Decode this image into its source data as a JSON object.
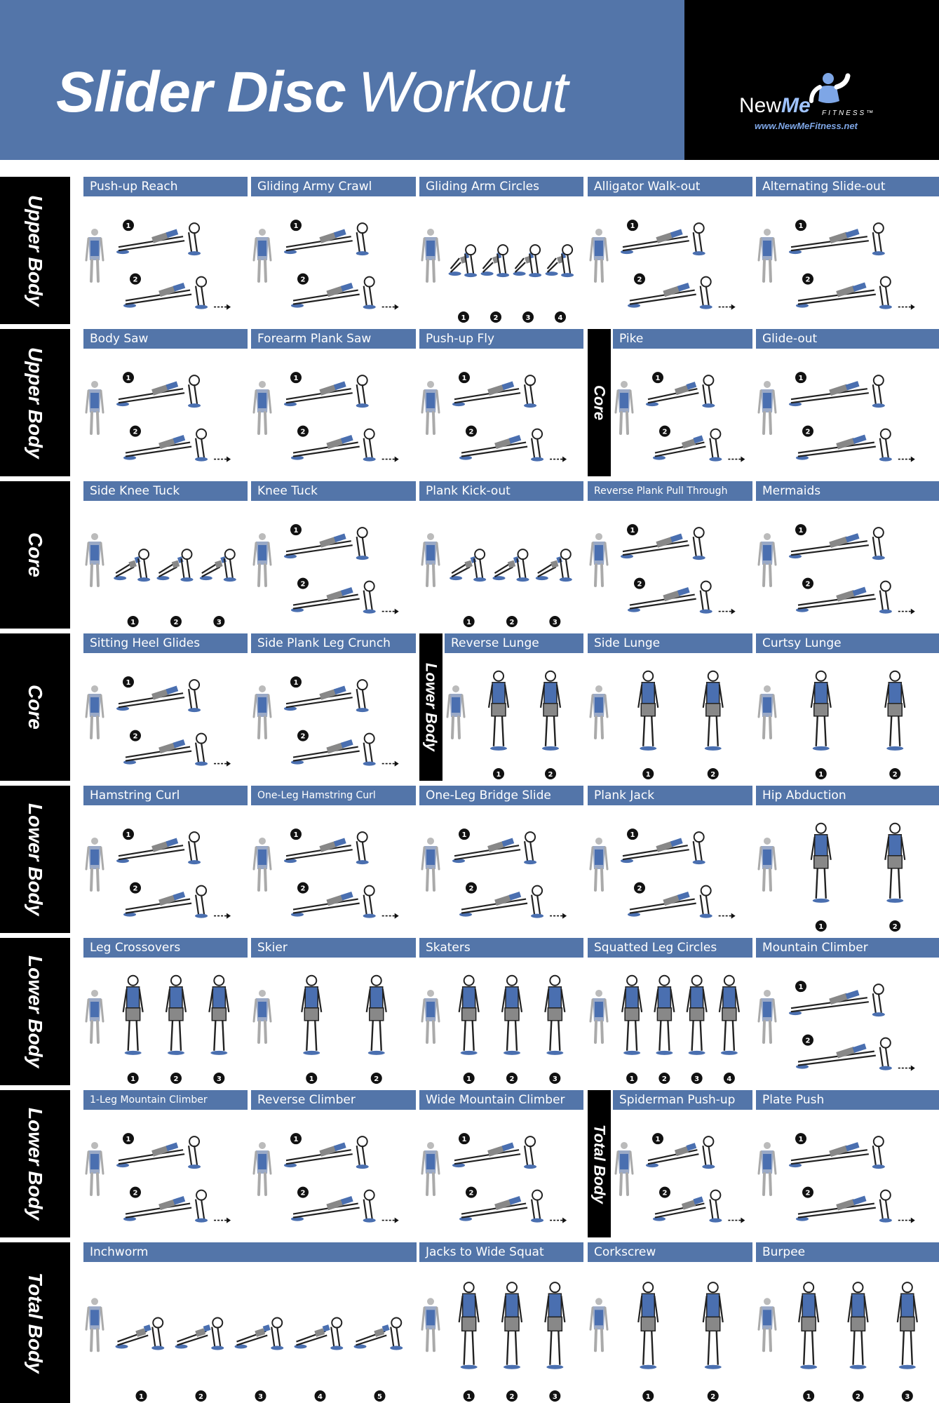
{
  "header": {
    "title_bold": "Slider Disc",
    "title_light": "Workout",
    "brand_new": "New",
    "brand_me": "Me",
    "brand_fitness": "FITNESS™",
    "brand_url": "www.NewMeFitness.net"
  },
  "rows": [
    {
      "label": "Upper Body",
      "cells": [
        {
          "title": "Push-up Reach",
          "steps": [
            "1",
            "2"
          ]
        },
        {
          "title": "Gliding Army Crawl",
          "steps": [
            "1",
            "2"
          ]
        },
        {
          "title": "Gliding Arm Circles",
          "steps": [
            "1",
            "2",
            "3",
            "4"
          ]
        },
        {
          "title": "Alligator Walk-out",
          "steps": [
            "1",
            "2"
          ]
        },
        {
          "title": "Alternating Slide-out",
          "steps": [
            "1",
            "2"
          ]
        }
      ]
    },
    {
      "label": "Upper Body",
      "cells": [
        {
          "title": "Body Saw",
          "steps": [
            "1",
            "2"
          ]
        },
        {
          "title": "Forearm Plank Saw",
          "steps": [
            "1",
            "2"
          ]
        },
        {
          "title": "Push-up Fly",
          "steps": [
            "1",
            "2"
          ]
        },
        {
          "title": "Pike",
          "steps": [
            "1",
            "2"
          ]
        },
        {
          "title": "Glide-out",
          "steps": [
            "1",
            "2"
          ]
        }
      ],
      "inline_label": "Core"
    },
    {
      "label": "Core",
      "cells": [
        {
          "title": "Side Knee Tuck",
          "steps": [
            "1",
            "2",
            "3"
          ]
        },
        {
          "title": "Knee Tuck",
          "steps": [
            "1",
            "2"
          ]
        },
        {
          "title": "Plank Kick-out",
          "steps": [
            "1",
            "2",
            "3"
          ]
        },
        {
          "title": "Reverse Plank Pull Through",
          "steps": [
            "1",
            "2"
          ]
        },
        {
          "title": "Mermaids",
          "steps": [
            "1",
            "2"
          ]
        }
      ]
    },
    {
      "label": "Core",
      "cells": [
        {
          "title": "Sitting Heel Glides",
          "steps": [
            "1",
            "2"
          ]
        },
        {
          "title": "Side Plank Leg Crunch",
          "steps": [
            "1",
            "2"
          ]
        },
        {
          "title": "Reverse Lunge",
          "steps": [
            "1",
            "2"
          ]
        },
        {
          "title": "Side Lunge",
          "steps": [
            "1",
            "2"
          ]
        },
        {
          "title": "Curtsy Lunge",
          "steps": [
            "1",
            "2"
          ]
        }
      ],
      "inline_label": "Lower Body"
    },
    {
      "label": "Lower Body",
      "cells": [
        {
          "title": "Hamstring Curl",
          "steps": [
            "1",
            "2"
          ]
        },
        {
          "title": "One-Leg Hamstring Curl",
          "steps": [
            "1",
            "2"
          ]
        },
        {
          "title": "One-Leg Bridge Slide",
          "steps": [
            "1",
            "2"
          ]
        },
        {
          "title": "Plank Jack",
          "steps": [
            "1",
            "2"
          ]
        },
        {
          "title": "Hip Abduction",
          "steps": [
            "1",
            "2"
          ]
        }
      ]
    },
    {
      "label": "Lower Body",
      "cells": [
        {
          "title": "Leg Crossovers",
          "steps": [
            "1",
            "2",
            "3"
          ]
        },
        {
          "title": "Skier",
          "steps": [
            "1",
            "2"
          ]
        },
        {
          "title": "Skaters",
          "steps": [
            "1",
            "2",
            "3"
          ]
        },
        {
          "title": "Squatted Leg Circles",
          "steps": [
            "1",
            "2",
            "3",
            "4"
          ]
        },
        {
          "title": "Mountain Climber",
          "steps": [
            "1",
            "2"
          ]
        }
      ]
    },
    {
      "label": "Lower Body",
      "cells": [
        {
          "title": "1-Leg Mountain Climber",
          "steps": [
            "1",
            "2"
          ]
        },
        {
          "title": "Reverse Climber",
          "steps": [
            "1",
            "2"
          ]
        },
        {
          "title": "Wide Mountain Climber",
          "steps": [
            "1",
            "2"
          ]
        },
        {
          "title": "Spiderman Push-up",
          "steps": [
            "1",
            "2"
          ]
        },
        {
          "title": "Plate Push",
          "steps": [
            "1",
            "2"
          ]
        }
      ],
      "inline_label": "Total Body"
    },
    {
      "label": "Total Body",
      "cells": [
        {
          "title": "Inchworm",
          "steps": [
            "1",
            "2",
            "3",
            "4",
            "5"
          ]
        },
        {
          "title": "Jacks to Wide Squat",
          "steps": [
            "1",
            "2",
            "3"
          ]
        },
        {
          "title": "Corkscrew",
          "steps": [
            "1",
            "2"
          ]
        },
        {
          "title": "Burpee",
          "steps": [
            "1",
            "2",
            "3"
          ]
        }
      ]
    }
  ],
  "colors": {
    "accent": "#5375a9",
    "dark": "#000000",
    "muscle": "#4a6fb0"
  }
}
